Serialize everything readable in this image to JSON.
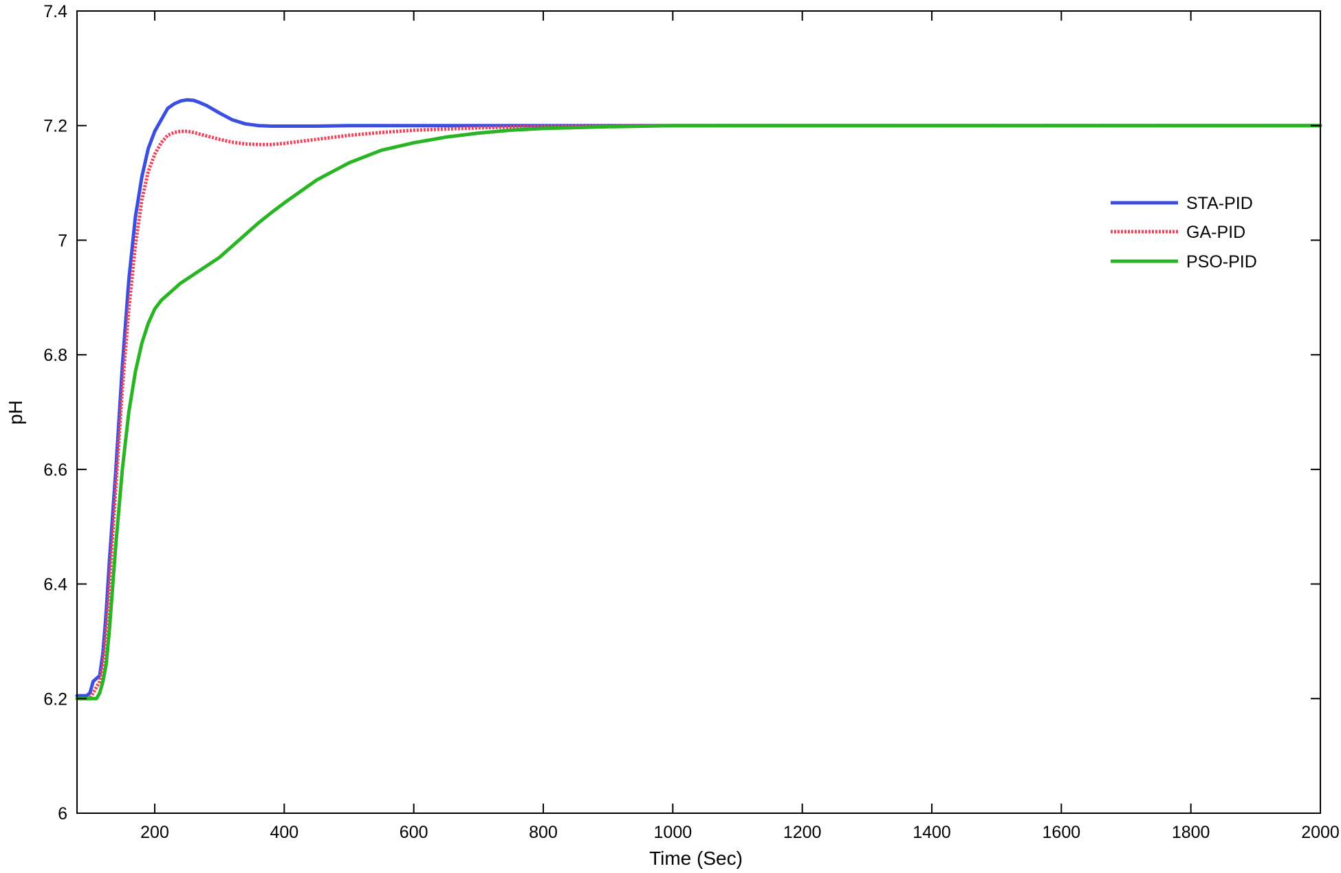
{
  "chart_data": {
    "type": "line",
    "title": "",
    "xlabel": "Time (Sec)",
    "ylabel": "pH",
    "xlim": [
      80,
      2000
    ],
    "ylim": [
      6,
      7.4
    ],
    "xticks": [
      200,
      400,
      600,
      800,
      1000,
      1200,
      1400,
      1600,
      1800,
      2000
    ],
    "yticks": [
      6,
      6.2,
      6.4,
      6.6,
      6.8,
      7,
      7.2,
      7.4
    ],
    "ytick_labels": [
      "6",
      "6.2",
      "6.4",
      "6.6",
      "6.8",
      "7",
      "7.2",
      "7.4"
    ],
    "grid": false,
    "legend_position": "top-right",
    "series": [
      {
        "name": "STA-PID",
        "color": "#3a4fe0",
        "dashed": false,
        "points": [
          [
            80,
            6.205
          ],
          [
            95,
            6.205
          ],
          [
            100,
            6.21
          ],
          [
            105,
            6.23
          ],
          [
            115,
            6.24
          ],
          [
            120,
            6.28
          ],
          [
            125,
            6.35
          ],
          [
            130,
            6.44
          ],
          [
            140,
            6.6
          ],
          [
            150,
            6.78
          ],
          [
            160,
            6.93
          ],
          [
            170,
            7.04
          ],
          [
            180,
            7.11
          ],
          [
            190,
            7.16
          ],
          [
            200,
            7.19
          ],
          [
            210,
            7.21
          ],
          [
            220,
            7.23
          ],
          [
            230,
            7.238
          ],
          [
            240,
            7.243
          ],
          [
            250,
            7.245
          ],
          [
            260,
            7.244
          ],
          [
            270,
            7.24
          ],
          [
            280,
            7.235
          ],
          [
            300,
            7.222
          ],
          [
            320,
            7.21
          ],
          [
            340,
            7.203
          ],
          [
            360,
            7.2
          ],
          [
            380,
            7.199
          ],
          [
            400,
            7.199
          ],
          [
            450,
            7.199
          ],
          [
            500,
            7.2
          ],
          [
            600,
            7.2
          ],
          [
            800,
            7.2
          ],
          [
            1000,
            7.2
          ],
          [
            1200,
            7.2
          ],
          [
            1400,
            7.2
          ],
          [
            1600,
            7.2
          ],
          [
            1800,
            7.2
          ],
          [
            2000,
            7.2
          ]
        ]
      },
      {
        "name": "GA-PID",
        "color": "#f0435a",
        "dashed": true,
        "points": [
          [
            80,
            6.2
          ],
          [
            100,
            6.2
          ],
          [
            105,
            6.21
          ],
          [
            110,
            6.22
          ],
          [
            115,
            6.23
          ],
          [
            120,
            6.26
          ],
          [
            125,
            6.32
          ],
          [
            130,
            6.4
          ],
          [
            140,
            6.57
          ],
          [
            150,
            6.74
          ],
          [
            160,
            6.88
          ],
          [
            170,
            6.99
          ],
          [
            180,
            7.07
          ],
          [
            190,
            7.12
          ],
          [
            200,
            7.15
          ],
          [
            210,
            7.17
          ],
          [
            220,
            7.183
          ],
          [
            230,
            7.188
          ],
          [
            240,
            7.19
          ],
          [
            250,
            7.19
          ],
          [
            260,
            7.188
          ],
          [
            280,
            7.182
          ],
          [
            300,
            7.176
          ],
          [
            320,
            7.171
          ],
          [
            340,
            7.168
          ],
          [
            360,
            7.167
          ],
          [
            380,
            7.167
          ],
          [
            400,
            7.169
          ],
          [
            450,
            7.176
          ],
          [
            500,
            7.183
          ],
          [
            550,
            7.188
          ],
          [
            600,
            7.192
          ],
          [
            700,
            7.196
          ],
          [
            800,
            7.199
          ],
          [
            1000,
            7.2
          ],
          [
            1200,
            7.2
          ],
          [
            1400,
            7.2
          ],
          [
            1600,
            7.2
          ],
          [
            1800,
            7.2
          ],
          [
            2000,
            7.2
          ]
        ]
      },
      {
        "name": "PSO-PID",
        "color": "#29b523",
        "dashed": false,
        "points": [
          [
            80,
            6.2
          ],
          [
            110,
            6.2
          ],
          [
            115,
            6.21
          ],
          [
            120,
            6.23
          ],
          [
            125,
            6.26
          ],
          [
            130,
            6.32
          ],
          [
            140,
            6.47
          ],
          [
            150,
            6.6
          ],
          [
            160,
            6.7
          ],
          [
            170,
            6.77
          ],
          [
            180,
            6.82
          ],
          [
            190,
            6.855
          ],
          [
            200,
            6.88
          ],
          [
            210,
            6.895
          ],
          [
            220,
            6.905
          ],
          [
            240,
            6.925
          ],
          [
            260,
            6.94
          ],
          [
            280,
            6.955
          ],
          [
            300,
            6.97
          ],
          [
            320,
            6.99
          ],
          [
            340,
            7.01
          ],
          [
            360,
            7.03
          ],
          [
            380,
            7.048
          ],
          [
            400,
            7.065
          ],
          [
            450,
            7.105
          ],
          [
            500,
            7.135
          ],
          [
            550,
            7.157
          ],
          [
            600,
            7.17
          ],
          [
            650,
            7.18
          ],
          [
            700,
            7.187
          ],
          [
            750,
            7.192
          ],
          [
            800,
            7.195
          ],
          [
            900,
            7.198
          ],
          [
            1000,
            7.2
          ],
          [
            1200,
            7.2
          ],
          [
            1400,
            7.2
          ],
          [
            1600,
            7.2
          ],
          [
            1800,
            7.2
          ],
          [
            2000,
            7.2
          ]
        ]
      }
    ]
  }
}
